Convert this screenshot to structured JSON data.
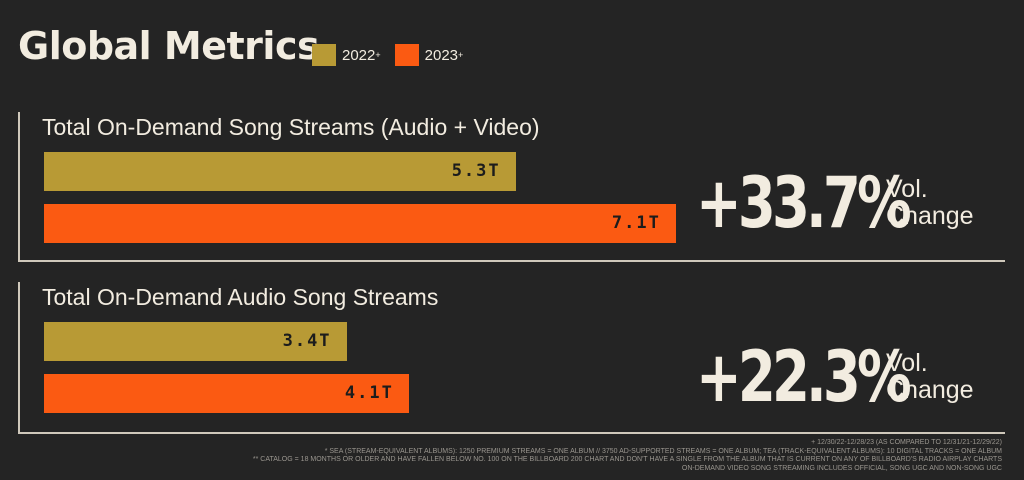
{
  "title": "Global Metrics",
  "legend": [
    {
      "label": "2022",
      "sup": "+",
      "color": "#b89a35"
    },
    {
      "label": "2023",
      "sup": "+",
      "color": "#fb5a12"
    }
  ],
  "chart_data": [
    {
      "type": "bar",
      "title": "Total On-Demand Song Streams (Audio + Video)",
      "categories": [
        "2022",
        "2023"
      ],
      "values": [
        5.3,
        7.1
      ],
      "value_labels": [
        "5.3T",
        "7.1T"
      ],
      "unit": "T",
      "change": "+33.7%",
      "change_label_1": "Vol.",
      "change_label_2": "Change"
    },
    {
      "type": "bar",
      "title": "Total On-Demand Audio Song Streams",
      "categories": [
        "2022",
        "2023"
      ],
      "values": [
        3.4,
        4.1
      ],
      "value_labels": [
        "3.4T",
        "4.1T"
      ],
      "unit": "T",
      "change": "+22.3%",
      "change_label_1": "Vol.",
      "change_label_2": "Change"
    }
  ],
  "footnotes": [
    "+ 12/30/22-12/28/23 (AS COMPARED TO 12/31/21-12/29/22)",
    "* SEA (STREAM-EQUIVALENT ALBUMS): 1250 PREMIUM STREAMS = ONE ALBUM // 3750 AD-SUPPORTED STREAMS = ONE ALBUM; TEA (TRACK-EQUIVALENT ALBUMS): 10 DIGITAL TRACKS = ONE ALBUM",
    "** CATALOG = 18 MONTHS OR OLDER AND HAVE FALLEN BELOW NO. 100 ON THE BILLBOARD 200 CHART AND DON'T HAVE A SINGLE FROM THE ALBUM THAT IS CURRENT ON ANY OF BILLBOARD'S RADIO AIRPLAY CHARTS",
    "ON-DEMAND VIDEO SONG STREAMING INCLUDES OFFICIAL, SONG UGC AND NON-SONG UGC"
  ]
}
